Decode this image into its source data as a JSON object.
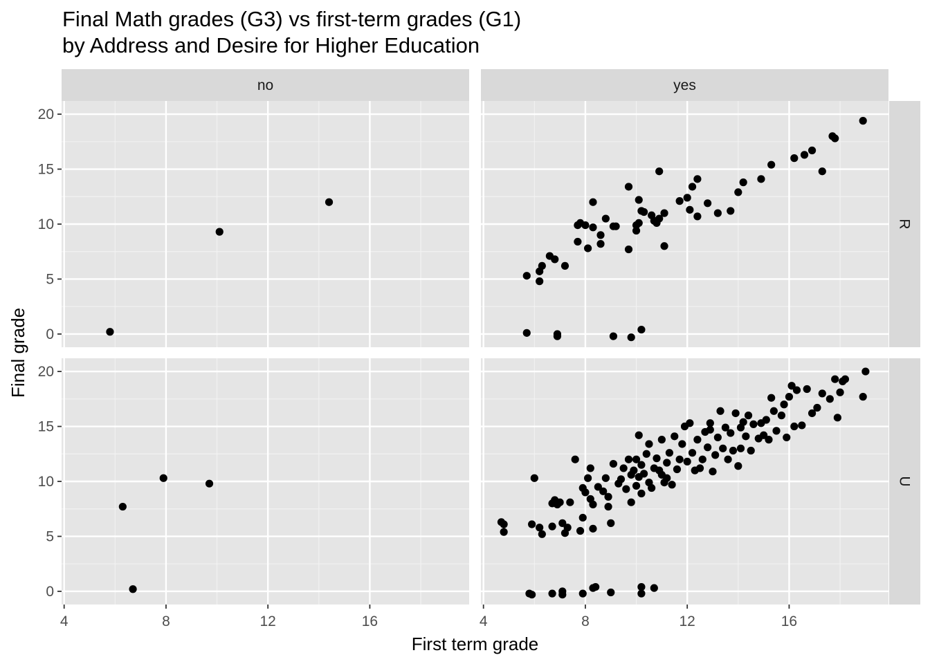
{
  "chart_data": {
    "type": "scatter",
    "title": "Final Math grades (G3) vs first-term grades (G1)",
    "subtitle": "by Address and Desire for Higher Education",
    "xlabel": "First term grade",
    "ylabel": "Final grade",
    "xlim": [
      3.9,
      19.9
    ],
    "ylim": [
      -1.2,
      21.2
    ],
    "x_ticks": [
      4,
      8,
      12,
      16
    ],
    "y_ticks": [
      0,
      5,
      10,
      15,
      20
    ],
    "grid": true,
    "facet_cols": [
      "no",
      "yes"
    ],
    "facet_rows": [
      "R",
      "U"
    ],
    "panels": [
      {
        "col": "no",
        "row": "R",
        "points": [
          [
            5.8,
            0.2
          ],
          [
            10.1,
            9.3
          ],
          [
            14.4,
            12.0
          ]
        ]
      },
      {
        "col": "yes",
        "row": "R",
        "points": [
          [
            5.7,
            5.3
          ],
          [
            5.7,
            0.1
          ],
          [
            6.2,
            4.8
          ],
          [
            6.2,
            5.7
          ],
          [
            6.3,
            6.2
          ],
          [
            6.6,
            7.1
          ],
          [
            6.8,
            6.8
          ],
          [
            6.9,
            0.0
          ],
          [
            6.9,
            -0.2
          ],
          [
            7.2,
            6.2
          ],
          [
            7.7,
            8.4
          ],
          [
            7.7,
            9.9
          ],
          [
            7.8,
            10.1
          ],
          [
            8.0,
            9.9
          ],
          [
            8.1,
            7.8
          ],
          [
            8.3,
            12.0
          ],
          [
            8.3,
            9.7
          ],
          [
            8.6,
            8.2
          ],
          [
            8.6,
            9.0
          ],
          [
            8.8,
            10.5
          ],
          [
            9.1,
            9.8
          ],
          [
            9.1,
            -0.2
          ],
          [
            9.2,
            9.8
          ],
          [
            9.7,
            13.4
          ],
          [
            9.7,
            7.7
          ],
          [
            9.8,
            -0.3
          ],
          [
            10.0,
            9.9
          ],
          [
            10.0,
            9.4
          ],
          [
            10.1,
            10.1
          ],
          [
            10.1,
            12.2
          ],
          [
            10.2,
            11.2
          ],
          [
            10.2,
            0.4
          ],
          [
            10.3,
            11.1
          ],
          [
            10.6,
            10.8
          ],
          [
            10.7,
            10.3
          ],
          [
            10.8,
            10.1
          ],
          [
            10.9,
            14.8
          ],
          [
            10.9,
            10.5
          ],
          [
            11.1,
            11.0
          ],
          [
            11.1,
            8.0
          ],
          [
            11.7,
            12.1
          ],
          [
            12.0,
            12.4
          ],
          [
            12.1,
            11.3
          ],
          [
            12.2,
            13.4
          ],
          [
            12.4,
            10.7
          ],
          [
            12.4,
            14.1
          ],
          [
            12.8,
            11.9
          ],
          [
            13.2,
            11.0
          ],
          [
            13.7,
            11.2
          ],
          [
            14.0,
            12.9
          ],
          [
            14.2,
            13.8
          ],
          [
            14.9,
            14.1
          ],
          [
            15.3,
            15.4
          ],
          [
            16.2,
            16.0
          ],
          [
            16.6,
            16.3
          ],
          [
            16.9,
            16.7
          ],
          [
            17.3,
            14.8
          ],
          [
            17.7,
            18.0
          ],
          [
            17.8,
            17.8
          ],
          [
            18.9,
            19.4
          ]
        ]
      },
      {
        "col": "no",
        "row": "U",
        "points": [
          [
            6.3,
            7.7
          ],
          [
            6.7,
            0.2
          ],
          [
            7.9,
            10.3
          ],
          [
            9.7,
            9.8
          ]
        ]
      },
      {
        "col": "yes",
        "row": "U",
        "points": [
          [
            4.7,
            6.3
          ],
          [
            4.8,
            6.1
          ],
          [
            4.8,
            5.4
          ],
          [
            5.8,
            -0.2
          ],
          [
            5.9,
            -0.3
          ],
          [
            5.9,
            6.1
          ],
          [
            6.0,
            10.3
          ],
          [
            6.2,
            5.8
          ],
          [
            6.3,
            5.2
          ],
          [
            6.7,
            8.0
          ],
          [
            6.7,
            5.9
          ],
          [
            6.7,
            -0.2
          ],
          [
            6.8,
            8.3
          ],
          [
            6.9,
            7.9
          ],
          [
            7.0,
            8.1
          ],
          [
            7.1,
            6.2
          ],
          [
            7.1,
            0.0
          ],
          [
            7.1,
            -0.3
          ],
          [
            7.2,
            5.3
          ],
          [
            7.3,
            5.8
          ],
          [
            7.4,
            8.1
          ],
          [
            7.6,
            12.0
          ],
          [
            7.8,
            5.5
          ],
          [
            7.9,
            6.7
          ],
          [
            7.9,
            9.4
          ],
          [
            7.9,
            -0.2
          ],
          [
            8.0,
            9.0
          ],
          [
            8.1,
            10.3
          ],
          [
            8.2,
            11.2
          ],
          [
            8.2,
            8.4
          ],
          [
            8.3,
            7.9
          ],
          [
            8.3,
            5.7
          ],
          [
            8.3,
            0.3
          ],
          [
            8.4,
            0.4
          ],
          [
            8.5,
            9.5
          ],
          [
            8.7,
            9.1
          ],
          [
            8.8,
            10.3
          ],
          [
            8.9,
            8.6
          ],
          [
            8.9,
            7.7
          ],
          [
            9.0,
            6.2
          ],
          [
            9.0,
            -0.1
          ],
          [
            9.1,
            11.6
          ],
          [
            9.3,
            9.8
          ],
          [
            9.4,
            10.2
          ],
          [
            9.5,
            11.2
          ],
          [
            9.6,
            9.3
          ],
          [
            9.7,
            12.0
          ],
          [
            9.8,
            8.1
          ],
          [
            9.8,
            10.6
          ],
          [
            9.9,
            11.0
          ],
          [
            10.0,
            12.0
          ],
          [
            10.0,
            9.6
          ],
          [
            10.1,
            10.4
          ],
          [
            10.1,
            14.2
          ],
          [
            10.2,
            11.5
          ],
          [
            10.2,
            8.9
          ],
          [
            10.2,
            0.4
          ],
          [
            10.2,
            -0.2
          ],
          [
            10.3,
            10.7
          ],
          [
            10.4,
            12.5
          ],
          [
            10.5,
            13.4
          ],
          [
            10.5,
            9.9
          ],
          [
            10.6,
            9.4
          ],
          [
            10.7,
            11.2
          ],
          [
            10.7,
            0.3
          ],
          [
            10.8,
            12.1
          ],
          [
            10.9,
            11.0
          ],
          [
            11.0,
            13.8
          ],
          [
            11.0,
            10.6
          ],
          [
            11.1,
            9.9
          ],
          [
            11.2,
            10.3
          ],
          [
            11.2,
            11.7
          ],
          [
            11.3,
            12.6
          ],
          [
            11.4,
            9.7
          ],
          [
            11.5,
            14.1
          ],
          [
            11.6,
            11.1
          ],
          [
            11.7,
            12.0
          ],
          [
            11.8,
            13.4
          ],
          [
            11.9,
            15.0
          ],
          [
            12.0,
            11.8
          ],
          [
            12.1,
            15.3
          ],
          [
            12.2,
            12.6
          ],
          [
            12.3,
            11.0
          ],
          [
            12.4,
            13.8
          ],
          [
            12.5,
            11.2
          ],
          [
            12.6,
            12.0
          ],
          [
            12.7,
            14.5
          ],
          [
            12.8,
            13.1
          ],
          [
            12.9,
            14.7
          ],
          [
            12.9,
            15.3
          ],
          [
            13.0,
            10.9
          ],
          [
            13.1,
            12.4
          ],
          [
            13.2,
            14.0
          ],
          [
            13.3,
            16.4
          ],
          [
            13.4,
            13.0
          ],
          [
            13.5,
            14.9
          ],
          [
            13.6,
            12.0
          ],
          [
            13.7,
            14.4
          ],
          [
            13.8,
            12.8
          ],
          [
            13.9,
            16.2
          ],
          [
            14.0,
            11.4
          ],
          [
            14.1,
            14.9
          ],
          [
            14.1,
            13.0
          ],
          [
            14.2,
            15.4
          ],
          [
            14.3,
            14.1
          ],
          [
            14.4,
            16.0
          ],
          [
            14.5,
            12.8
          ],
          [
            14.6,
            15.2
          ],
          [
            14.8,
            13.9
          ],
          [
            14.9,
            15.3
          ],
          [
            15.0,
            14.2
          ],
          [
            15.1,
            15.6
          ],
          [
            15.2,
            13.8
          ],
          [
            15.3,
            17.6
          ],
          [
            15.4,
            16.4
          ],
          [
            15.5,
            14.6
          ],
          [
            15.7,
            16.0
          ],
          [
            15.8,
            17.0
          ],
          [
            15.9,
            14.0
          ],
          [
            16.0,
            17.7
          ],
          [
            16.1,
            18.7
          ],
          [
            16.2,
            15.0
          ],
          [
            16.3,
            18.3
          ],
          [
            16.5,
            15.1
          ],
          [
            16.7,
            18.4
          ],
          [
            16.9,
            16.2
          ],
          [
            17.1,
            16.7
          ],
          [
            17.3,
            18.0
          ],
          [
            17.6,
            17.5
          ],
          [
            17.8,
            19.3
          ],
          [
            17.9,
            15.8
          ],
          [
            18.0,
            18.1
          ],
          [
            18.1,
            19.1
          ],
          [
            18.2,
            19.3
          ],
          [
            18.9,
            17.7
          ],
          [
            19.0,
            20.0
          ]
        ]
      }
    ]
  }
}
